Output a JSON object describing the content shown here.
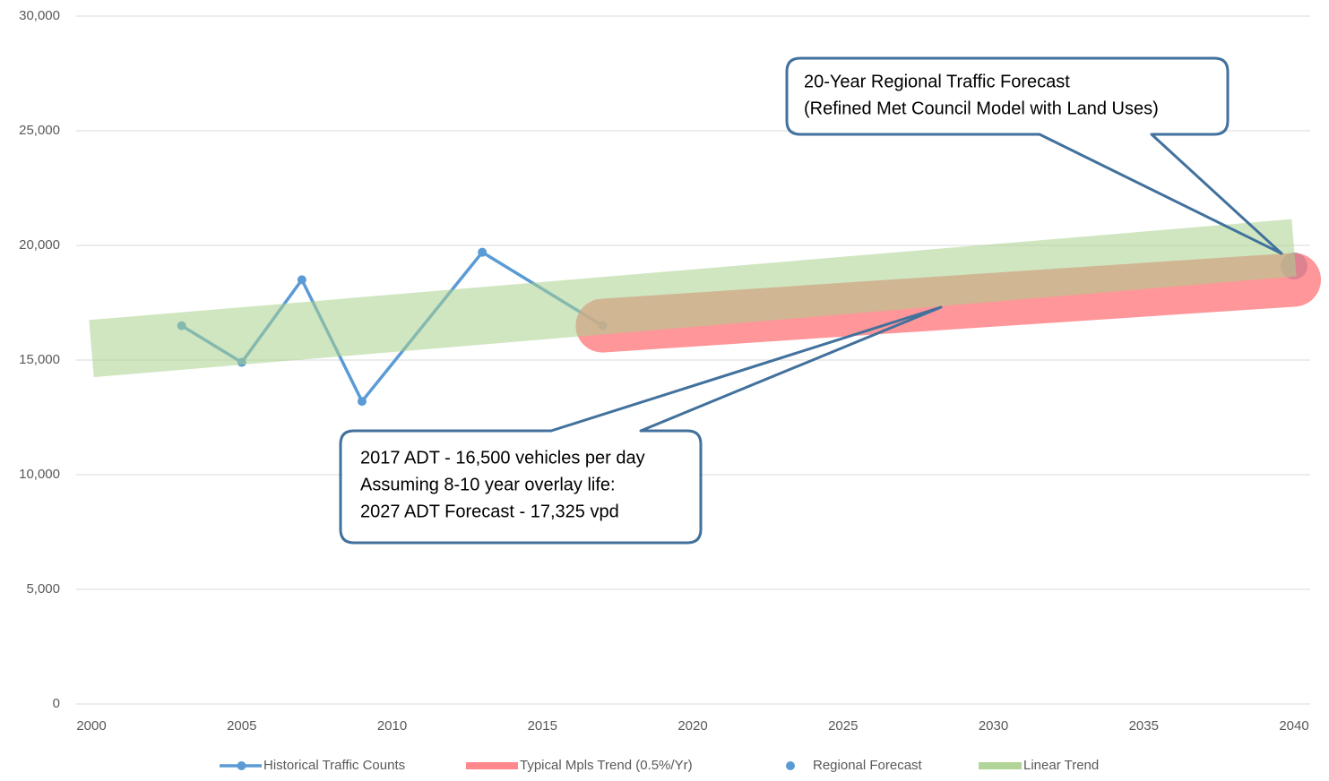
{
  "chart_data": {
    "type": "line",
    "xlim": [
      2000,
      2040
    ],
    "xticks": [
      2000,
      2005,
      2010,
      2015,
      2020,
      2025,
      2030,
      2035,
      2040
    ],
    "ylim": [
      0,
      30000
    ],
    "yticks": [
      0,
      {
        "value": 5000,
        "label": "5,000"
      },
      {
        "value": 10000,
        "label": "10,000"
      },
      {
        "value": 15000,
        "label": "15,000"
      },
      {
        "value": 20000,
        "label": "20,000"
      },
      {
        "value": 25000,
        "label": "25,000"
      },
      {
        "value": 30000,
        "label": "30,000"
      }
    ],
    "grid": true,
    "legend": "bottom",
    "series": [
      {
        "name": "Historical Traffic Counts",
        "color": "#5b9bd5",
        "x": [
          2003,
          2005,
          2007,
          2009,
          2013,
          2017
        ],
        "values": [
          16500,
          14900,
          18500,
          13200,
          19700,
          16500
        ],
        "markers": true
      },
      {
        "name": "Typical Mpls Trend (0.5%/Yr)",
        "color": "#ff7c80",
        "x": [
          2017,
          2040
        ],
        "values": [
          16500,
          18500
        ]
      },
      {
        "name": "Regional Forecast",
        "color": "#5b9bd5",
        "x": [
          2040
        ],
        "values": [
          19100
        ]
      },
      {
        "name": "Linear Trend",
        "color": "#a9d18e",
        "x": [
          2000,
          2040
        ],
        "values": [
          15500,
          19900
        ]
      }
    ],
    "annotations": [
      {
        "lines": [
          "20-Year Regional Traffic Forecast",
          "(Refined Met Council Model with Land Uses)"
        ]
      },
      {
        "lines": [
          "2017 ADT - 16,500 vehicles per day",
          "Assuming 8-10 year overlay life:",
          "2027 ADT Forecast - 17,325 vpd"
        ]
      }
    ]
  }
}
